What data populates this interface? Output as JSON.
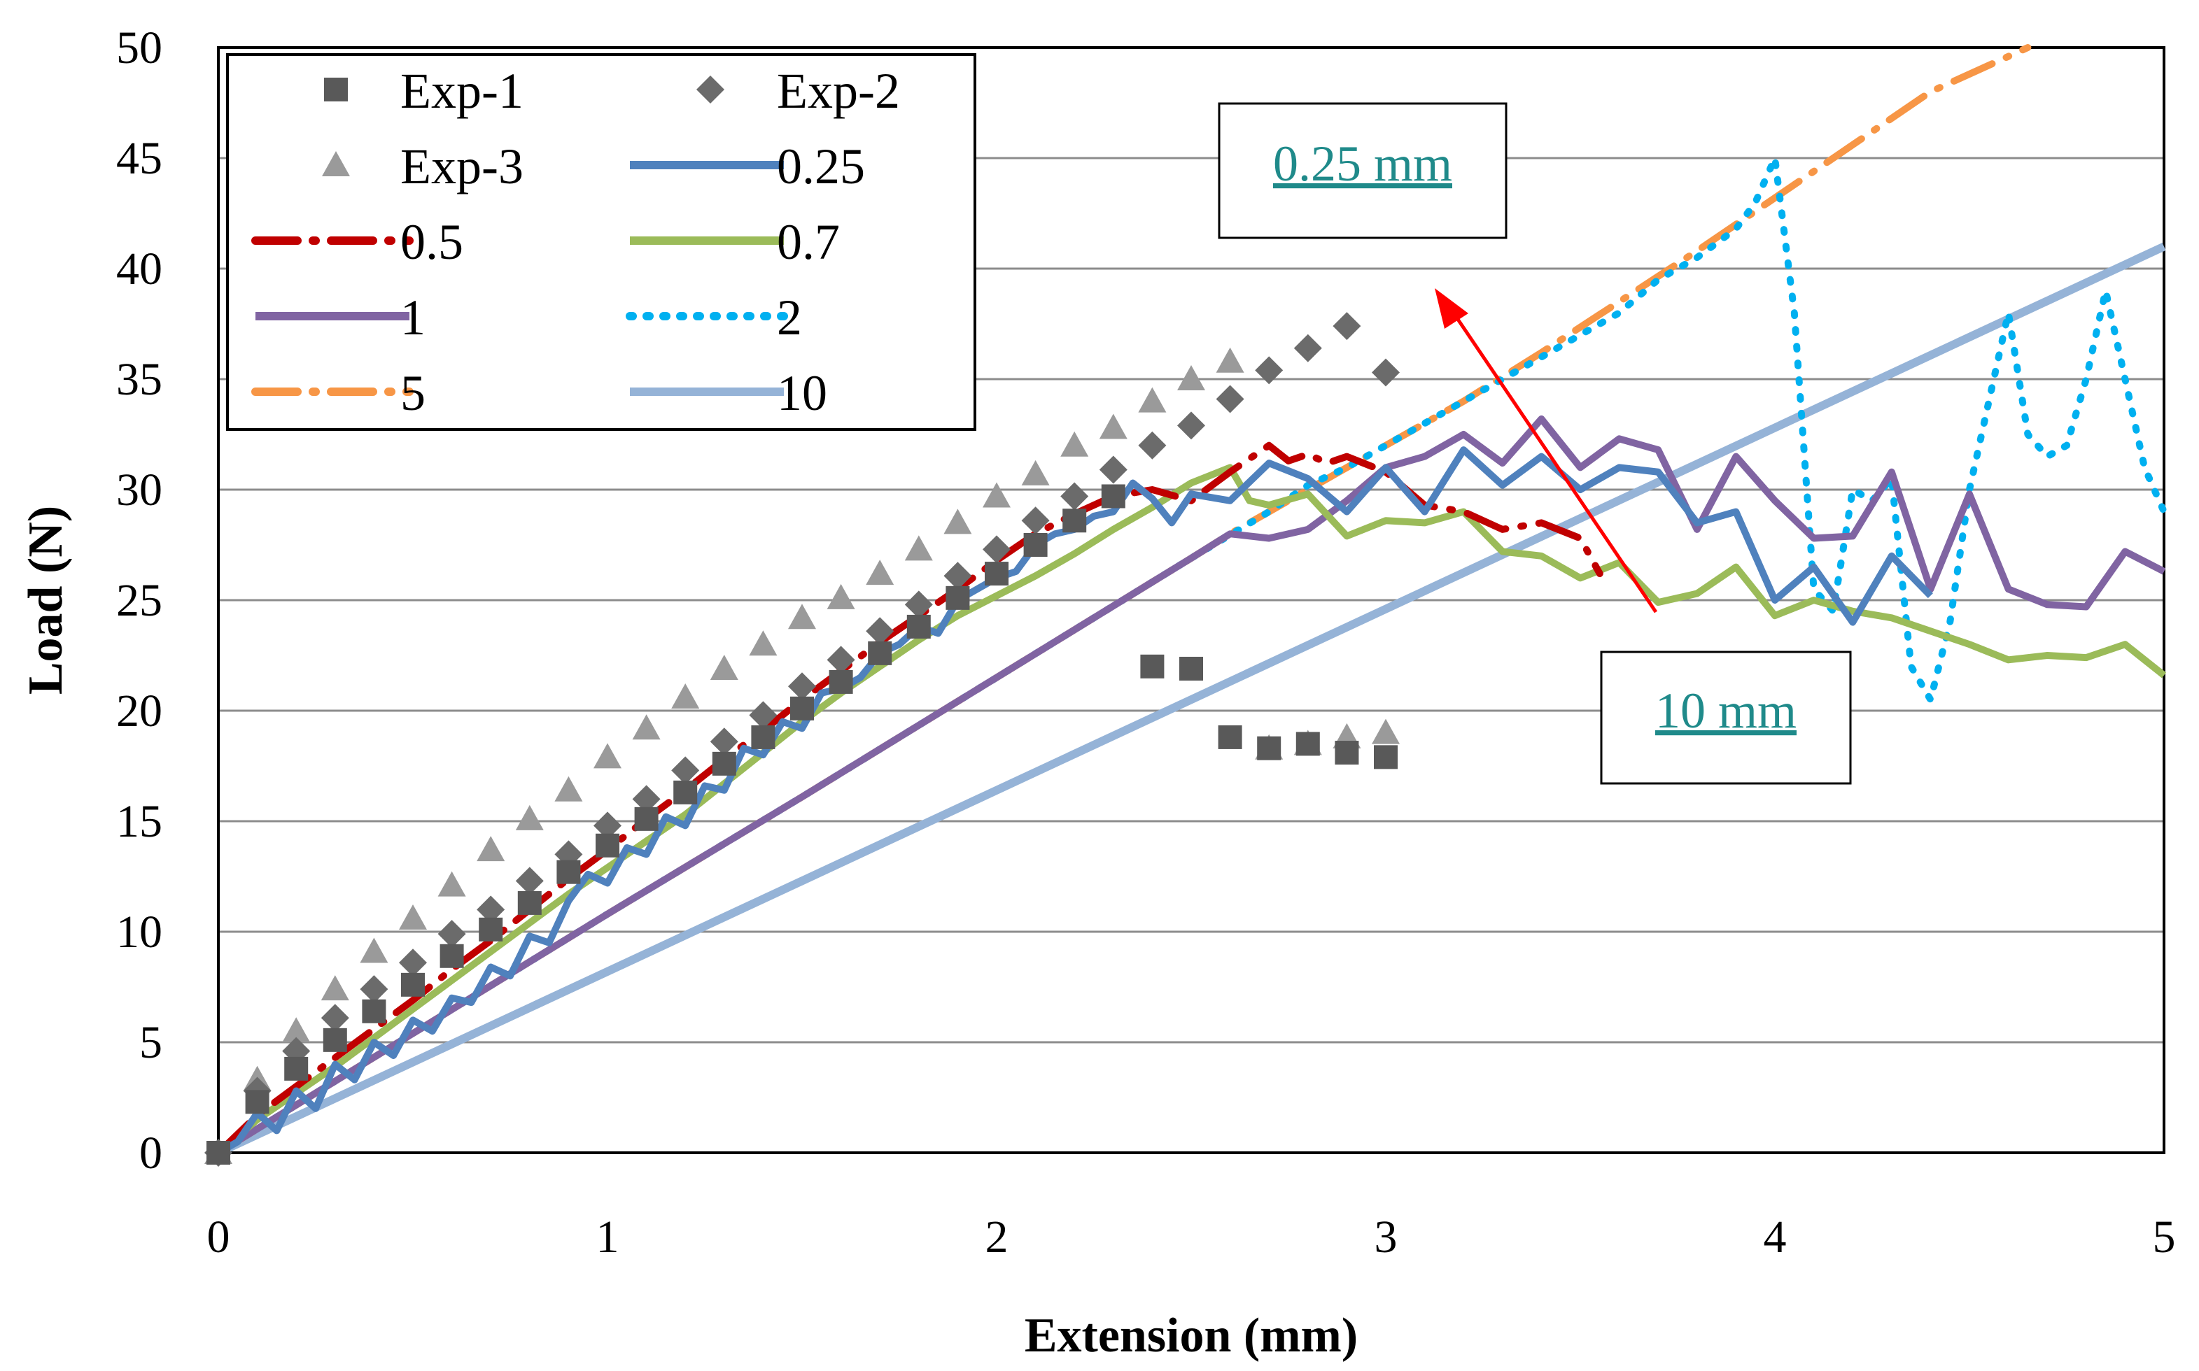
{
  "chart_data": {
    "type": "line",
    "title": "",
    "xlabel": "Extension (mm)",
    "ylabel": "Load (N)",
    "xlim": [
      0,
      5
    ],
    "ylim": [
      0,
      50
    ],
    "x_ticks": [
      "0",
      "1",
      "2",
      "3",
      "4",
      "5"
    ],
    "y_ticks": [
      "0",
      "5",
      "10",
      "15",
      "20",
      "25",
      "30",
      "35",
      "40",
      "45",
      "50"
    ],
    "grid": "horizontal",
    "legend_position": "top-left",
    "series": [
      {
        "name": "Exp-1",
        "kind": "scatter",
        "marker": "square",
        "color": "#595959",
        "x": [
          0,
          0.1,
          0.2,
          0.3,
          0.4,
          0.5,
          0.6,
          0.7,
          0.8,
          0.9,
          1.0,
          1.1,
          1.2,
          1.3,
          1.4,
          1.5,
          1.6,
          1.7,
          1.8,
          1.9,
          2.0,
          2.1,
          2.2,
          2.3,
          2.4,
          2.5,
          2.6,
          2.7,
          2.8,
          2.9,
          3.0
        ],
        "y": [
          0,
          2.3,
          3.8,
          5.1,
          6.4,
          7.6,
          8.9,
          10.1,
          11.3,
          12.7,
          13.9,
          15.1,
          16.3,
          17.6,
          18.8,
          20.1,
          21.3,
          22.6,
          23.8,
          25.1,
          26.2,
          27.5,
          28.6,
          29.7,
          22,
          21.9,
          18.8,
          18.3,
          18.5,
          18.1,
          17.9
        ]
      },
      {
        "name": "Exp-2",
        "kind": "scatter",
        "marker": "diamond",
        "color": "#6b6b6b",
        "x": [
          0,
          0.1,
          0.2,
          0.3,
          0.4,
          0.5,
          0.6,
          0.7,
          0.8,
          0.9,
          1.0,
          1.1,
          1.2,
          1.3,
          1.4,
          1.5,
          1.6,
          1.7,
          1.8,
          1.9,
          2.0,
          2.1,
          2.2,
          2.3,
          2.4,
          2.5,
          2.6,
          2.7,
          2.8,
          2.9,
          3.0
        ],
        "y": [
          0,
          2.8,
          4.6,
          6.1,
          7.4,
          8.6,
          9.9,
          11.0,
          12.3,
          13.5,
          14.8,
          16.0,
          17.3,
          18.6,
          19.8,
          21.1,
          22.3,
          23.6,
          24.8,
          26.1,
          27.3,
          28.6,
          29.7,
          30.9,
          32.0,
          32.9,
          34.1,
          35.4,
          36.4,
          37.4,
          35.3
        ]
      },
      {
        "name": "Exp-3",
        "kind": "scatter",
        "marker": "triangle",
        "color": "#9a9a9a",
        "x": [
          0,
          0.1,
          0.2,
          0.3,
          0.4,
          0.5,
          0.6,
          0.7,
          0.8,
          0.9,
          1.0,
          1.1,
          1.2,
          1.3,
          1.4,
          1.5,
          1.6,
          1.7,
          1.8,
          1.9,
          2.0,
          2.1,
          2.2,
          2.3,
          2.4,
          2.5,
          2.6,
          2.7,
          2.8,
          2.9,
          3.0
        ],
        "y": [
          0,
          3.3,
          5.5,
          7.4,
          9.1,
          10.6,
          12.1,
          13.7,
          15.1,
          16.4,
          17.9,
          19.2,
          20.6,
          21.9,
          23.0,
          24.2,
          25.1,
          26.2,
          27.3,
          28.5,
          29.7,
          30.7,
          32.0,
          32.8,
          34.0,
          35.0,
          35.8,
          18.3,
          18.5,
          18.8,
          19.0
        ]
      },
      {
        "name": "0.25",
        "kind": "line",
        "style": "solid",
        "color": "#4f81bd",
        "x": [
          0,
          0.05,
          0.1,
          0.15,
          0.2,
          0.25,
          0.3,
          0.35,
          0.4,
          0.45,
          0.5,
          0.55,
          0.6,
          0.65,
          0.7,
          0.75,
          0.8,
          0.85,
          0.9,
          0.95,
          1.0,
          1.05,
          1.1,
          1.15,
          1.2,
          1.25,
          1.3,
          1.35,
          1.4,
          1.45,
          1.5,
          1.55,
          1.6,
          1.65,
          1.7,
          1.75,
          1.8,
          1.85,
          1.9,
          1.95,
          2.0,
          2.05,
          2.1,
          2.15,
          2.2,
          2.25,
          2.3,
          2.35,
          2.4,
          2.45,
          2.5,
          2.6,
          2.7,
          2.8,
          2.9,
          3.0,
          3.1,
          3.2,
          3.3,
          3.4,
          3.5,
          3.6,
          3.7,
          3.8,
          3.9,
          4.0,
          4.1,
          4.2,
          4.3,
          4.4
        ],
        "y": [
          0,
          0.5,
          1.8,
          1.0,
          2.8,
          2.0,
          4.0,
          3.3,
          5.0,
          4.4,
          6.0,
          5.5,
          7.0,
          6.8,
          8.4,
          8.0,
          9.8,
          9.5,
          11.4,
          12.6,
          12.2,
          13.8,
          13.5,
          15.2,
          14.8,
          16.6,
          16.4,
          18.3,
          18.0,
          19.5,
          19.2,
          20.8,
          21.0,
          21.5,
          22.6,
          23.0,
          23.8,
          23.5,
          25.0,
          25.5,
          26.0,
          26.3,
          27.5,
          28.0,
          28.2,
          28.8,
          29.0,
          30.3,
          29.6,
          28.5,
          29.8,
          29.5,
          31.2,
          30.5,
          29.0,
          31.0,
          29.0,
          31.8,
          30.2,
          31.5,
          30.0,
          31.0,
          30.8,
          28.5,
          29.0,
          25.0,
          26.5,
          24.0,
          27.0,
          25.2
        ]
      },
      {
        "name": "0.5",
        "kind": "line",
        "style": "dash-dot",
        "color": "#c00000",
        "x": [
          0,
          0.1,
          0.2,
          0.3,
          0.4,
          0.5,
          0.6,
          0.7,
          0.8,
          0.9,
          1.0,
          1.1,
          1.2,
          1.3,
          1.4,
          1.5,
          1.6,
          1.7,
          1.8,
          1.9,
          2.0,
          2.1,
          2.2,
          2.3,
          2.4,
          2.5,
          2.6,
          2.7,
          2.75,
          2.8,
          2.85,
          2.9,
          3.0,
          3.1,
          3.2,
          3.3,
          3.4,
          3.5,
          3.55
        ],
        "y": [
          0,
          1.7,
          3.0,
          4.3,
          5.6,
          6.9,
          8.3,
          9.6,
          11.0,
          12.4,
          13.7,
          15.1,
          16.4,
          17.8,
          19.1,
          20.5,
          21.8,
          23.1,
          24.3,
          25.5,
          26.8,
          28.0,
          28.9,
          29.7,
          30.0,
          29.5,
          30.8,
          32.0,
          31.3,
          31.6,
          31.2,
          31.5,
          30.8,
          29.3,
          29.0,
          28.2,
          28.5,
          27.8,
          26.2
        ]
      },
      {
        "name": "0.7",
        "kind": "line",
        "style": "solid",
        "color": "#9bbb59",
        "x": [
          0,
          0.1,
          0.2,
          0.3,
          0.4,
          0.5,
          0.6,
          0.7,
          0.8,
          0.9,
          1.0,
          1.1,
          1.2,
          1.3,
          1.4,
          1.5,
          1.6,
          1.7,
          1.8,
          1.9,
          2.0,
          2.1,
          2.2,
          2.3,
          2.4,
          2.5,
          2.6,
          2.65,
          2.7,
          2.8,
          2.9,
          3.0,
          3.1,
          3.2,
          3.3,
          3.4,
          3.5,
          3.6,
          3.7,
          3.8,
          3.9,
          4.0,
          4.1,
          4.2,
          4.3,
          4.4,
          4.5,
          4.6,
          4.7,
          4.8,
          4.9,
          5.0
        ],
        "y": [
          0,
          1.5,
          2.7,
          3.9,
          5.2,
          6.5,
          7.8,
          9.1,
          10.4,
          11.7,
          12.9,
          14.1,
          15.3,
          16.7,
          18.1,
          19.5,
          20.8,
          22.0,
          23.2,
          24.3,
          25.2,
          26.1,
          27.1,
          28.2,
          29.2,
          30.3,
          31.0,
          29.5,
          29.3,
          29.8,
          27.9,
          28.6,
          28.5,
          29.0,
          27.2,
          27.0,
          26.0,
          26.7,
          24.9,
          25.3,
          26.5,
          24.3,
          25.0,
          24.5,
          24.2,
          23.6,
          23.0,
          22.3,
          22.5,
          22.4,
          23.0,
          21.6
        ]
      },
      {
        "name": "1",
        "kind": "line",
        "style": "solid",
        "color": "#8064a2",
        "x": [
          0,
          0.5,
          1.0,
          1.5,
          2.0,
          2.5,
          2.6,
          2.7,
          2.8,
          2.9,
          3.0,
          3.1,
          3.2,
          3.3,
          3.4,
          3.5,
          3.6,
          3.7,
          3.8,
          3.9,
          4.0,
          4.1,
          4.2,
          4.3,
          4.4,
          4.5,
          4.6,
          4.7,
          4.8,
          4.9,
          5.0
        ],
        "y": [
          0,
          5.4,
          10.8,
          16.1,
          21.5,
          26.9,
          28.0,
          27.8,
          28.2,
          29.5,
          31.0,
          31.5,
          32.5,
          31.2,
          33.2,
          31.0,
          32.3,
          31.8,
          28.2,
          31.5,
          29.5,
          27.8,
          27.9,
          30.8,
          25.5,
          29.8,
          25.5,
          24.8,
          24.7,
          27.2,
          26.3
        ]
      },
      {
        "name": "2",
        "kind": "line",
        "style": "dotted",
        "color": "#00b0f0",
        "x": [
          0,
          0.5,
          1.0,
          1.5,
          2.0,
          2.5,
          2.7,
          2.8,
          2.9,
          3.0,
          3.1,
          3.2,
          3.3,
          3.4,
          3.5,
          3.6,
          3.7,
          3.8,
          3.9,
          3.95,
          4.0,
          4.05,
          4.1,
          4.15,
          4.2,
          4.25,
          4.3,
          4.35,
          4.4,
          4.45,
          4.5,
          4.55,
          4.6,
          4.65,
          4.7,
          4.75,
          4.8,
          4.85,
          4.9,
          4.95,
          5.0
        ],
        "y": [
          0,
          5.4,
          10.8,
          16.1,
          21.5,
          26.9,
          29.0,
          30.2,
          31.0,
          32.0,
          33.0,
          34.0,
          35.0,
          36.0,
          37.0,
          38.0,
          39.5,
          40.5,
          41.8,
          43.0,
          45.0,
          38.0,
          25.5,
          24.5,
          30.0,
          29.5,
          30.5,
          22.0,
          20.5,
          24.0,
          30.0,
          34.0,
          38.0,
          32.5,
          31.5,
          32.0,
          35.0,
          39.0,
          35.0,
          31.0,
          29.0
        ]
      },
      {
        "name": "5",
        "kind": "line",
        "style": "dash-dot",
        "color": "#f79646",
        "x": [
          0,
          0.5,
          1.0,
          1.5,
          2.0,
          2.5,
          2.6,
          2.7,
          2.8,
          2.9,
          3.0,
          3.2,
          3.4,
          3.6,
          3.8,
          4.0,
          4.2,
          4.4,
          4.6,
          4.65
        ],
        "y": [
          0,
          5.4,
          10.8,
          16.1,
          21.5,
          26.9,
          28.0,
          29.0,
          30.0,
          31.0,
          32.0,
          34.0,
          36.2,
          38.5,
          40.8,
          43.2,
          45.6,
          48.0,
          49.6,
          50.0
        ]
      },
      {
        "name": "10",
        "kind": "line",
        "style": "solid",
        "color": "#95b3d7",
        "x": [
          0,
          5
        ],
        "y": [
          0,
          41
        ]
      }
    ],
    "annotations": [
      {
        "text": "0.25 mm"
      },
      {
        "text": "10 mm"
      }
    ]
  }
}
